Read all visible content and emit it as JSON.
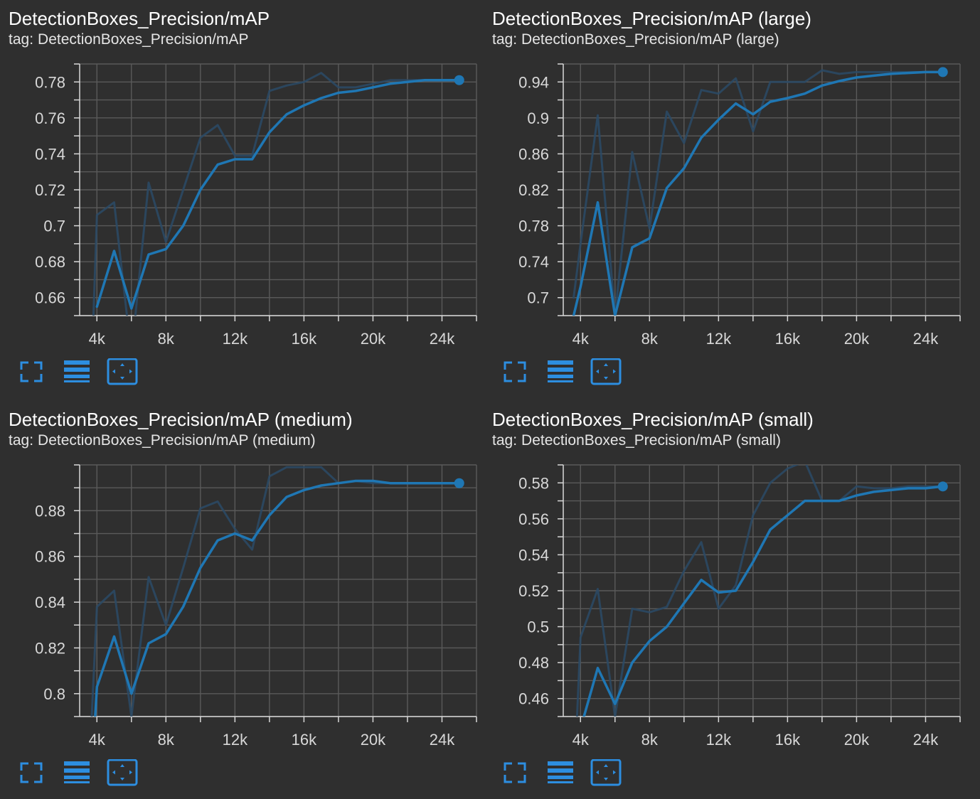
{
  "colors": {
    "background": "#2f2f2f",
    "plot_background": "#2f2f2f",
    "grid": "#5a5a5a",
    "axis": "#d8d8d8",
    "line_smoothed": "#1f77b4",
    "line_raw": "#2a4a66",
    "icon": "#2d8ee0"
  },
  "toolbar": {
    "fullscreen_icon": "expand-icon",
    "log_scale_icon": "lines-icon",
    "fit_domain_icon": "fit-domain-icon"
  },
  "charts": [
    {
      "title": "DetectionBoxes_Precision/mAP",
      "tag_label": "tag:",
      "tag_value": "DetectionBoxes_Precision/mAP",
      "chart_data": {
        "type": "line",
        "xlim": [
          3000,
          26000
        ],
        "ylim": [
          0.65,
          0.79
        ],
        "x_ticks": [
          4000,
          8000,
          12000,
          16000,
          20000,
          24000
        ],
        "x_tick_labels": [
          "4k",
          "8k",
          "12k",
          "16k",
          "20k",
          "24k"
        ],
        "y_ticks": [
          0.66,
          0.68,
          0.7,
          0.72,
          0.74,
          0.76,
          0.78
        ],
        "y_tick_labels": [
          "0.66",
          "0.68",
          "0.7",
          "0.72",
          "0.74",
          "0.76",
          "0.78"
        ],
        "grid": true,
        "series": [
          {
            "role": "raw",
            "x": [
              3800,
              4000,
              5000,
              6000,
              7000,
              8000,
              9000,
              10000,
              11000,
              12000,
              13000,
              14000,
              15000,
              16000,
              17000,
              18000,
              19000,
              20000,
              21000,
              22000,
              23000,
              24000,
              25000
            ],
            "y": [
              0.65,
              0.706,
              0.713,
              0.628,
              0.724,
              0.691,
              0.72,
              0.749,
              0.756,
              0.739,
              0.739,
              0.775,
              0.778,
              0.78,
              0.785,
              0.777,
              0.777,
              0.779,
              0.781,
              0.781,
              0.781,
              0.781,
              0.781
            ]
          },
          {
            "role": "smoothed",
            "x": [
              4000,
              5000,
              6000,
              7000,
              8000,
              9000,
              10000,
              11000,
              12000,
              13000,
              14000,
              15000,
              16000,
              17000,
              18000,
              19000,
              20000,
              21000,
              22000,
              23000,
              24000,
              25000
            ],
            "y": [
              0.655,
              0.686,
              0.654,
              0.684,
              0.687,
              0.7,
              0.72,
              0.734,
              0.737,
              0.737,
              0.752,
              0.762,
              0.767,
              0.771,
              0.774,
              0.775,
              0.777,
              0.779,
              0.78,
              0.781,
              0.781,
              0.781
            ]
          }
        ]
      }
    },
    {
      "title": "DetectionBoxes_Precision/mAP (large)",
      "tag_label": "tag:",
      "tag_value": "DetectionBoxes_Precision/mAP (large)",
      "chart_data": {
        "type": "line",
        "xlim": [
          3000,
          26000
        ],
        "ylim": [
          0.68,
          0.96
        ],
        "x_ticks": [
          4000,
          8000,
          12000,
          16000,
          20000,
          24000
        ],
        "x_tick_labels": [
          "4k",
          "8k",
          "12k",
          "16k",
          "20k",
          "24k"
        ],
        "y_ticks": [
          0.7,
          0.74,
          0.78,
          0.82,
          0.86,
          0.9,
          0.94
        ],
        "y_tick_labels": [
          "0.7",
          "0.74",
          "0.78",
          "0.82",
          "0.86",
          "0.9",
          "0.94"
        ],
        "grid": true,
        "series": [
          {
            "role": "raw",
            "x": [
              3600,
              4000,
              5000,
              6000,
              7000,
              8000,
              9000,
              10000,
              11000,
              12000,
              13000,
              14000,
              15000,
              16000,
              17000,
              18000,
              19000,
              20000,
              21000,
              22000,
              23000,
              24000,
              25000
            ],
            "y": [
              0.7,
              0.76,
              0.903,
              0.68,
              0.862,
              0.777,
              0.907,
              0.872,
              0.931,
              0.927,
              0.944,
              0.885,
              0.94,
              0.94,
              0.94,
              0.953,
              0.949,
              0.951,
              0.951,
              0.951,
              0.951,
              0.951,
              0.951
            ]
          },
          {
            "role": "smoothed",
            "x": [
              3600,
              4000,
              5000,
              6000,
              7000,
              8000,
              9000,
              10000,
              11000,
              12000,
              13000,
              14000,
              15000,
              16000,
              17000,
              18000,
              19000,
              20000,
              21000,
              22000,
              23000,
              24000,
              25000
            ],
            "y": [
              0.68,
              0.712,
              0.806,
              0.68,
              0.756,
              0.766,
              0.822,
              0.844,
              0.878,
              0.898,
              0.916,
              0.904,
              0.918,
              0.922,
              0.927,
              0.936,
              0.941,
              0.945,
              0.947,
              0.949,
              0.95,
              0.951,
              0.951
            ]
          }
        ]
      }
    },
    {
      "title": "DetectionBoxes_Precision/mAP (medium)",
      "tag_label": "tag:",
      "tag_value": "DetectionBoxes_Precision/mAP (medium)",
      "chart_data": {
        "type": "line",
        "xlim": [
          3000,
          26000
        ],
        "ylim": [
          0.79,
          0.9
        ],
        "x_ticks": [
          4000,
          8000,
          12000,
          16000,
          20000,
          24000
        ],
        "x_tick_labels": [
          "4k",
          "8k",
          "12k",
          "16k",
          "20k",
          "24k"
        ],
        "y_ticks": [
          0.8,
          0.82,
          0.84,
          0.86,
          0.88
        ],
        "y_tick_labels": [
          "0.8",
          "0.82",
          "0.84",
          "0.86",
          "0.88"
        ],
        "grid": true,
        "series": [
          {
            "role": "raw",
            "x": [
              3700,
              4000,
              5000,
              6000,
              7000,
              8000,
              9000,
              10000,
              11000,
              12000,
              13000,
              14000,
              15000,
              16000,
              17000,
              18000,
              19000,
              20000,
              21000,
              22000,
              23000,
              24000,
              25000
            ],
            "y": [
              0.79,
              0.838,
              0.845,
              0.79,
              0.851,
              0.83,
              0.855,
              0.881,
              0.884,
              0.872,
              0.863,
              0.895,
              0.899,
              0.899,
              0.899,
              0.892,
              0.893,
              0.892,
              0.892,
              0.892,
              0.892,
              0.892,
              0.892
            ]
          },
          {
            "role": "smoothed",
            "x": [
              3900,
              4000,
              5000,
              6000,
              7000,
              8000,
              9000,
              10000,
              11000,
              12000,
              13000,
              14000,
              15000,
              16000,
              17000,
              18000,
              19000,
              20000,
              21000,
              22000,
              23000,
              24000,
              25000
            ],
            "y": [
              0.79,
              0.803,
              0.825,
              0.8,
              0.822,
              0.826,
              0.838,
              0.855,
              0.867,
              0.87,
              0.867,
              0.878,
              0.886,
              0.889,
              0.891,
              0.892,
              0.893,
              0.893,
              0.892,
              0.892,
              0.892,
              0.892,
              0.892
            ]
          }
        ]
      }
    },
    {
      "title": "DetectionBoxes_Precision/mAP (small)",
      "tag_label": "tag:",
      "tag_value": "DetectionBoxes_Precision/mAP (small)",
      "chart_data": {
        "type": "line",
        "xlim": [
          3000,
          26000
        ],
        "ylim": [
          0.45,
          0.59
        ],
        "x_ticks": [
          4000,
          8000,
          12000,
          16000,
          20000,
          24000
        ],
        "x_tick_labels": [
          "4k",
          "8k",
          "12k",
          "16k",
          "20k",
          "24k"
        ],
        "y_ticks": [
          0.46,
          0.48,
          0.5,
          0.52,
          0.54,
          0.56,
          0.58
        ],
        "y_tick_labels": [
          "0.46",
          "0.48",
          "0.5",
          "0.52",
          "0.54",
          "0.56",
          "0.58"
        ],
        "grid": true,
        "series": [
          {
            "role": "raw",
            "x": [
              3800,
              4000,
              5000,
              6000,
              7000,
              8000,
              9000,
              10000,
              11000,
              12000,
              13000,
              14000,
              15000,
              16000,
              17000,
              18000,
              19000,
              20000,
              21000,
              22000,
              23000,
              24000,
              25000
            ],
            "y": [
              0.45,
              0.494,
              0.521,
              0.45,
              0.51,
              0.508,
              0.511,
              0.531,
              0.547,
              0.51,
              0.523,
              0.562,
              0.58,
              0.588,
              0.592,
              0.57,
              0.57,
              0.578,
              0.577,
              0.577,
              0.578,
              0.578,
              0.578
            ]
          },
          {
            "role": "smoothed",
            "x": [
              4200,
              5000,
              6000,
              7000,
              8000,
              9000,
              10000,
              11000,
              12000,
              13000,
              14000,
              15000,
              16000,
              17000,
              18000,
              19000,
              20000,
              21000,
              22000,
              23000,
              24000,
              25000
            ],
            "y": [
              0.45,
              0.477,
              0.457,
              0.48,
              0.492,
              0.5,
              0.513,
              0.526,
              0.519,
              0.52,
              0.536,
              0.554,
              0.562,
              0.57,
              0.57,
              0.57,
              0.573,
              0.575,
              0.576,
              0.577,
              0.577,
              0.578
            ]
          }
        ]
      }
    }
  ]
}
